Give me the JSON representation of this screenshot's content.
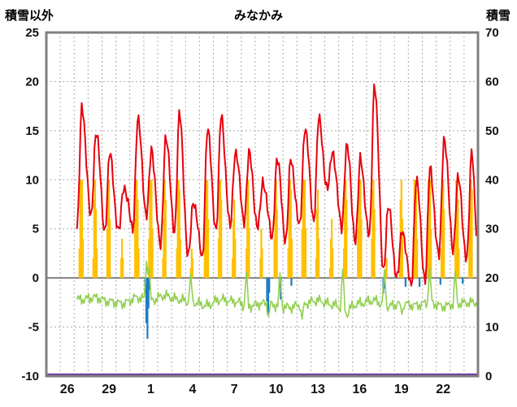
{
  "header": {
    "left_axis_title": "積雪以外",
    "chart_title": "みなかみ",
    "right_axis_title": "積雪"
  },
  "chart_data": {
    "type": "line",
    "title": "みなかみ",
    "station": "みなかみ",
    "left_axis": {
      "label": "積雪以外",
      "range": [
        -10,
        25
      ],
      "ticks": [
        25,
        20,
        15,
        10,
        5,
        0,
        -5,
        -10
      ]
    },
    "right_axis": {
      "label": "積雪",
      "range": [
        0,
        70
      ],
      "ticks": [
        70,
        60,
        50,
        40,
        30,
        20,
        10,
        0
      ]
    },
    "x_axis": {
      "tick_labels": [
        "26",
        "29",
        "1",
        "4",
        "7",
        "10",
        "13",
        "16",
        "19",
        "22"
      ],
      "tick_days": [
        1,
        4,
        7,
        10,
        13,
        16,
        19,
        22,
        25,
        28
      ],
      "total_days": 31,
      "grid": "daily-dashed"
    },
    "colors": {
      "red": "#e8000d",
      "green": "#92d050",
      "yellow": "#ffc000",
      "blue": "#1d7dc4",
      "purple": "#7030a0",
      "frame": "#808080",
      "grid": "#aaaaaa",
      "zero_line": "#808080"
    },
    "series": {
      "red_line": {
        "kind": "line",
        "axis": "left",
        "color_key": "red",
        "daily_min_max": [
          [
            2,
            5,
            17.5
          ],
          [
            3,
            6,
            15
          ],
          [
            4,
            5,
            12.5
          ],
          [
            5,
            4.5,
            9.5
          ],
          [
            6,
            5,
            16
          ],
          [
            7,
            6.5,
            13
          ],
          [
            8,
            3,
            14.5
          ],
          [
            9,
            5,
            16.5
          ],
          [
            10,
            2,
            8
          ],
          [
            11,
            2,
            15
          ],
          [
            12,
            5,
            16.5
          ],
          [
            13,
            5,
            13
          ],
          [
            14,
            6,
            12.5
          ],
          [
            15,
            5,
            10
          ],
          [
            16,
            4,
            12
          ],
          [
            17,
            4,
            12
          ],
          [
            18,
            5,
            15.5
          ],
          [
            19,
            6,
            16
          ],
          [
            20,
            9,
            13
          ],
          [
            21,
            5,
            13.5
          ],
          [
            22,
            4,
            12
          ],
          [
            23,
            4,
            20
          ],
          [
            24,
            1,
            7
          ],
          [
            25,
            0,
            5
          ],
          [
            26,
            -1,
            10
          ],
          [
            27,
            0,
            11
          ],
          [
            28,
            2,
            14.5
          ],
          [
            29,
            3,
            10
          ],
          [
            30,
            2,
            13
          ]
        ],
        "end_value": 4
      },
      "green_line": {
        "kind": "line",
        "axis": "left",
        "color_key": "green",
        "daily_base": [
          -2.5,
          -2.5,
          -2.2,
          -2.0,
          -2.4,
          -2.6,
          -2.0,
          -2.3,
          -1.8,
          -2.2,
          -2.5,
          -2.8,
          -2.2,
          -2.4,
          -2.9,
          -2.6,
          -2.8,
          -3.0,
          -2.6,
          -2.3,
          -2.7,
          -3.2,
          -2.6,
          -2.3,
          -2.9,
          -2.6,
          -2.8,
          -2.5,
          -2.9,
          -2.6,
          -2.5
        ],
        "spikes": [
          [
            7.2,
            1.7
          ],
          [
            7.4,
            1.0
          ],
          [
            10.4,
            0.4
          ],
          [
            14.35,
            0.6
          ],
          [
            15.95,
            -3.9
          ],
          [
            16.8,
            0.5
          ],
          [
            18.4,
            -4.2
          ],
          [
            21.3,
            0.9
          ],
          [
            21.65,
            -4.0
          ],
          [
            24.3,
            0.8
          ],
          [
            25.5,
            -3.7
          ],
          [
            27.5,
            1.1
          ],
          [
            29.4,
            0.7
          ]
        ]
      },
      "yellow_bars": {
        "kind": "bar",
        "axis": "left",
        "color_key": "yellow",
        "cap": 10,
        "daily_hourly_heights": [
          {
            "day": 2,
            "heights": [
              3,
              10,
              10,
              10,
              4
            ]
          },
          {
            "day": 3,
            "heights": [
              2,
              8,
              10,
              7,
              3
            ]
          },
          {
            "day": 4,
            "heights": [
              5,
              10,
              10,
              6
            ]
          },
          {
            "day": 5,
            "heights": [
              2,
              4,
              2
            ]
          },
          {
            "day": 6,
            "heights": [
              6,
              10,
              10,
              8,
              3
            ]
          },
          {
            "day": 7,
            "heights": [
              4,
              10,
              10,
              10,
              5
            ]
          },
          {
            "day": 8,
            "heights": [
              2,
              6,
              10,
              8
            ]
          },
          {
            "day": 9,
            "heights": [
              3,
              10,
              10,
              9,
              4
            ]
          },
          {
            "day": 10,
            "heights": [
              1,
              3,
              2
            ]
          },
          {
            "day": 11,
            "heights": [
              5,
              10,
              10,
              10,
              6
            ]
          },
          {
            "day": 12,
            "heights": [
              4,
              10,
              10,
              8
            ]
          },
          {
            "day": 13,
            "heights": [
              2,
              6,
              8,
              4
            ]
          },
          {
            "day": 14,
            "heights": [
              3,
              9,
              10,
              5
            ]
          },
          {
            "day": 15,
            "heights": [
              2,
              5,
              3
            ]
          },
          {
            "day": 16,
            "heights": [
              4,
              10,
              10,
              7
            ]
          },
          {
            "day": 17,
            "heights": [
              3,
              8,
              10,
              9,
              4
            ]
          },
          {
            "day": 18,
            "heights": [
              5,
              10,
              10,
              10,
              5
            ]
          },
          {
            "day": 19,
            "heights": [
              2,
              7,
              9,
              4
            ]
          },
          {
            "day": 20,
            "heights": [
              1,
              4,
              6,
              3
            ]
          },
          {
            "day": 21,
            "heights": [
              3,
              10,
              10,
              8
            ]
          },
          {
            "day": 22,
            "heights": [
              5,
              10,
              10,
              10,
              6
            ]
          },
          {
            "day": 23,
            "heights": [
              4,
              9,
              10,
              7
            ]
          },
          {
            "day": 24,
            "heights": [
              1,
              2
            ]
          },
          {
            "day": 25,
            "heights": [
              3,
              8,
              10,
              6
            ]
          },
          {
            "day": 26,
            "heights": [
              4,
              10,
              10,
              9,
              4
            ]
          },
          {
            "day": 27,
            "heights": [
              5,
              10,
              10,
              10,
              5
            ]
          },
          {
            "day": 28,
            "heights": [
              3,
              9,
              10,
              7
            ]
          },
          {
            "day": 29,
            "heights": [
              4,
              10,
              10,
              8,
              3
            ]
          },
          {
            "day": 30,
            "heights": [
              5,
              10,
              10,
              9
            ]
          }
        ]
      },
      "blue_bars": {
        "kind": "bar",
        "axis": "left",
        "color_key": "blue",
        "points": [
          [
            7.1,
            -1.5
          ],
          [
            7.18,
            -4.6
          ],
          [
            7.26,
            -6.2
          ],
          [
            7.34,
            -3.1
          ],
          [
            7.42,
            -1.2
          ],
          [
            15.85,
            -2.4
          ],
          [
            15.93,
            -3.6
          ],
          [
            16.01,
            -1.5
          ],
          [
            16.75,
            -1.0
          ],
          [
            16.83,
            -2.2
          ],
          [
            17.6,
            -0.8
          ],
          [
            24.2,
            -1.6
          ],
          [
            24.28,
            -1.1
          ],
          [
            25.8,
            -0.9
          ],
          [
            26.8,
            -0.9
          ],
          [
            28.3,
            -0.7
          ],
          [
            29.9,
            -0.6
          ]
        ]
      },
      "purple_line": {
        "kind": "line",
        "axis": "right",
        "color_key": "purple",
        "constant_value": 0
      }
    }
  }
}
